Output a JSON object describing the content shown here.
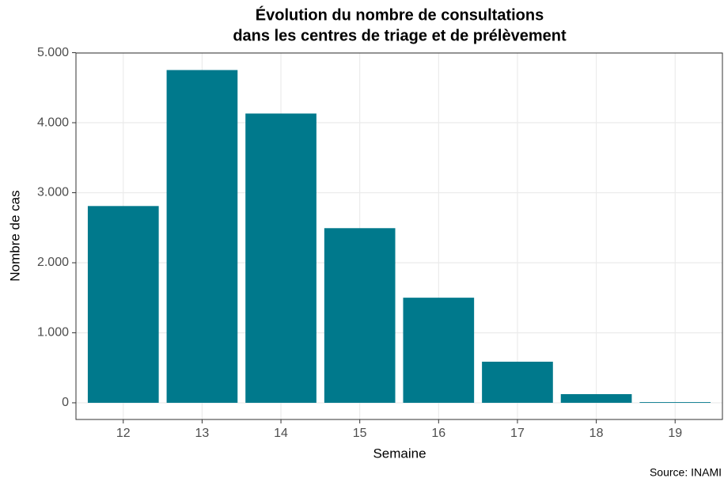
{
  "chart_data": {
    "type": "bar",
    "title": [
      "Évolution du nombre de consultations",
      "dans les centres de triage et de prélèvement"
    ],
    "x_label": "Semaine",
    "y_label": "Nombre de cas",
    "caption": "Source: INAMI",
    "categories": [
      "12",
      "13",
      "14",
      "15",
      "16",
      "17",
      "18",
      "19"
    ],
    "values": [
      2810,
      4752,
      4131,
      2494,
      1501,
      587,
      124,
      10
    ],
    "color": "#00798c",
    "ylim": [
      -238,
      4995
    ],
    "yticks": [
      0,
      {
        "value": 1000,
        "label": "1.000"
      },
      {
        "value": 2000,
        "label": "2.000"
      },
      {
        "value": 3000,
        "label": "3.000"
      },
      {
        "value": 4000,
        "label": "4.000"
      },
      {
        "value": 5000,
        "label": "5.000"
      }
    ],
    "grid": true
  }
}
